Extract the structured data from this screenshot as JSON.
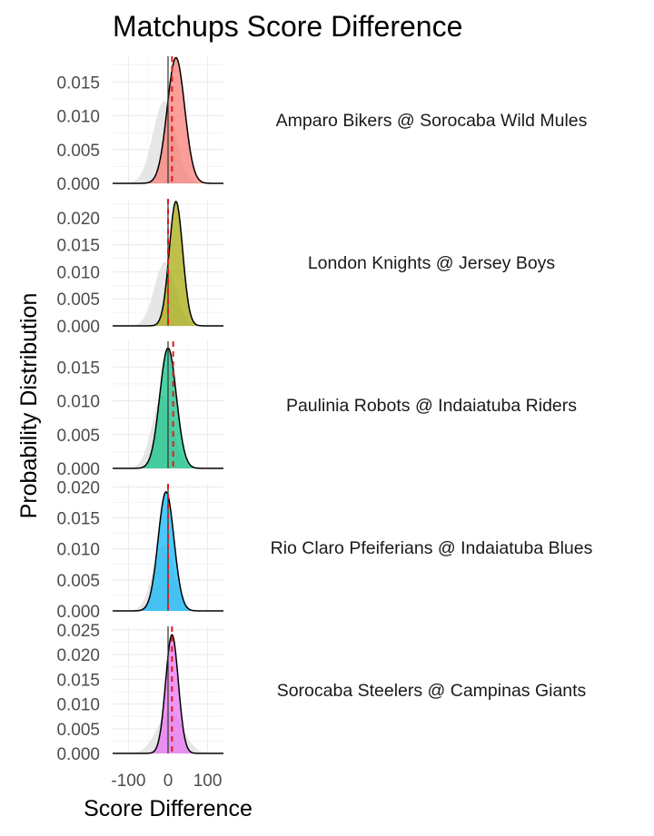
{
  "chart_data": {
    "type": "area",
    "title": "Matchups Score Difference",
    "xlabel": "Score Difference",
    "ylabel": "Probability Distribution",
    "xlim": [
      -140,
      140
    ],
    "x_ticks": [
      "-100",
      "0",
      "100"
    ],
    "x_tick_values": [
      -100,
      0,
      100
    ],
    "grid": true,
    "background_density_color": "#e6e6e6",
    "zero_line_color": "#333333",
    "mean_line_color": "#e31a1c",
    "panels": [
      {
        "label": "Amparo Bikers @ Sorocaba Wild Mules",
        "color": "#F8766D",
        "mean": 20,
        "sd": 22,
        "peak": 0.0186,
        "mean_line": 10,
        "ylim": [
          0,
          0.0188
        ],
        "y_ticks": [
          "0.000",
          "0.005",
          "0.010",
          "0.015"
        ],
        "y_tick_values": [
          0,
          0.005,
          0.01,
          0.015
        ],
        "bg_mean": -10,
        "bg_sd": 28,
        "bg_peak": 0.0122
      },
      {
        "label": "London Knights @ Jersey Boys",
        "color": "#A3A500",
        "mean": 20,
        "sd": 17,
        "peak": 0.023,
        "mean_line": 0,
        "ylim": [
          0,
          0.0235
        ],
        "y_ticks": [
          "0.000",
          "0.005",
          "0.010",
          "0.015",
          "0.020"
        ],
        "y_tick_values": [
          0,
          0.005,
          0.01,
          0.015,
          0.02
        ],
        "bg_mean": -8,
        "bg_sd": 26,
        "bg_peak": 0.0118
      },
      {
        "label": "Paulinia Robots @ Indaiatuba Riders",
        "color": "#00BF7D",
        "mean": 0,
        "sd": 21,
        "peak": 0.0178,
        "mean_line": 13,
        "ylim": [
          0,
          0.0188
        ],
        "y_ticks": [
          "0.000",
          "0.005",
          "0.010",
          "0.015"
        ],
        "y_tick_values": [
          0,
          0.005,
          0.01,
          0.015
        ],
        "bg_mean": -14,
        "bg_sd": 26,
        "bg_peak": 0.0108
      },
      {
        "label": "Rio Claro Pfeiferians @ Indaiatuba Blues",
        "color": "#00B0F6",
        "mean": -5,
        "sd": 20,
        "peak": 0.0192,
        "mean_line": 0,
        "ylim": [
          0,
          0.0205
        ],
        "y_ticks": [
          "0.000",
          "0.005",
          "0.010",
          "0.015",
          "0.020"
        ],
        "y_tick_values": [
          0,
          0.005,
          0.01,
          0.015,
          0.02
        ],
        "bg_mean": -12,
        "bg_sd": 26,
        "bg_peak": 0.0105
      },
      {
        "label": "Sorocaba Steelers @ Campinas Giants",
        "color": "#E76BF3",
        "mean": 10,
        "sd": 16,
        "peak": 0.024,
        "mean_line": 10,
        "ylim": [
          0,
          0.0257
        ],
        "y_ticks": [
          "0.000",
          "0.005",
          "0.010",
          "0.015",
          "0.020",
          "0.025"
        ],
        "y_tick_values": [
          0,
          0.005,
          0.01,
          0.015,
          0.02,
          0.025
        ],
        "bg_mean": 5,
        "bg_sd": 32,
        "bg_peak": 0.0085
      }
    ]
  }
}
